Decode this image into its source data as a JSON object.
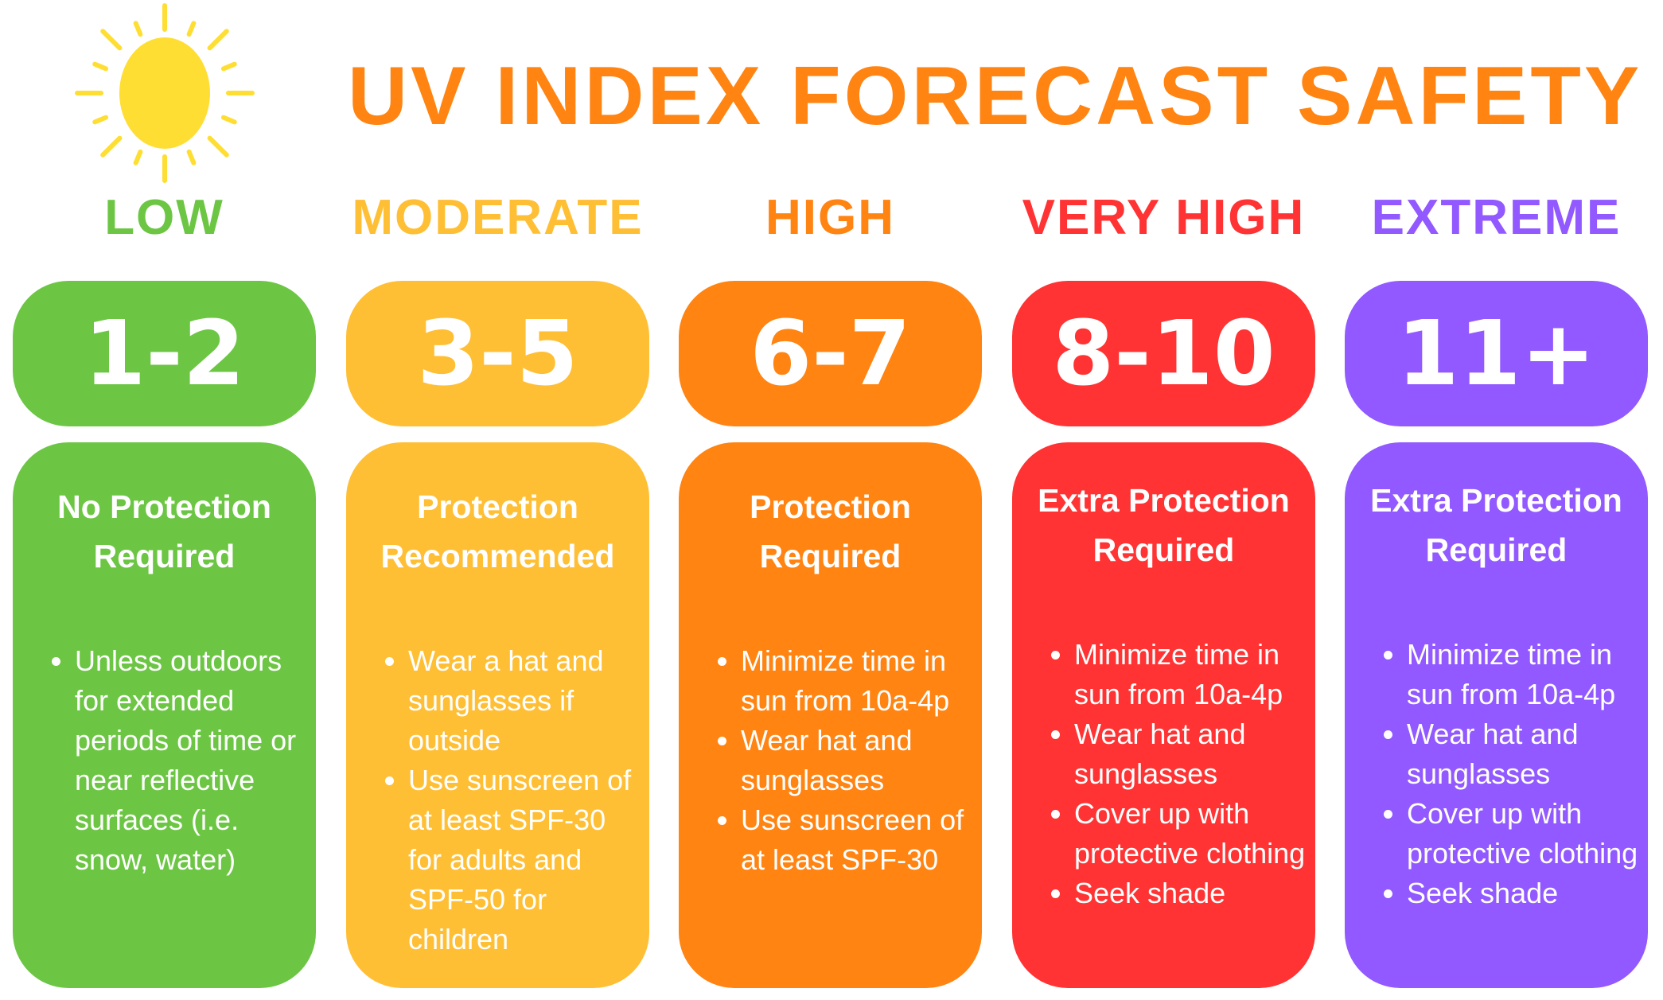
{
  "title": "UV INDEX FORECAST SAFETY",
  "colors": {
    "title": "#FF8412",
    "sun": "#FFDE33",
    "low": "#6CC644",
    "moderate": "#FFBF35",
    "high": "#FF8412",
    "very_high": "#FF3333",
    "extreme": "#9159FF"
  },
  "icons": {
    "sun": "sun-icon"
  },
  "levels": [
    {
      "category": "LOW",
      "range": "1-2",
      "heading": "No Protection Required",
      "tips": [
        "Unless outdoors for extended periods of time or near reflective surfaces (i.e. snow, water)"
      ]
    },
    {
      "category": "MODERATE",
      "range": "3-5",
      "heading": "Protection Recommended",
      "tips": [
        "Wear a hat and sunglasses if outside",
        "Use sunscreen of at least SPF-30 for adults and SPF-50 for children"
      ]
    },
    {
      "category": "HIGH",
      "range": "6-7",
      "heading": "Protection Required",
      "tips": [
        "Minimize time in sun from 10a-4p",
        "Wear hat and sunglasses",
        "Use sunscreen of at least SPF-30"
      ]
    },
    {
      "category": "VERY HIGH",
      "range": "8-10",
      "heading": "Extra Protection Required",
      "tips": [
        "Minimize time in sun from 10a-4p",
        "Wear hat and sunglasses",
        "Cover up with protective clothing",
        "Seek shade"
      ]
    },
    {
      "category": "EXTREME",
      "range": "11+",
      "heading": "Extra Protection Required",
      "tips": [
        "Minimize time in sun from 10a-4p",
        "Wear hat and sunglasses",
        "Cover up with protective clothing",
        "Seek shade"
      ]
    }
  ]
}
